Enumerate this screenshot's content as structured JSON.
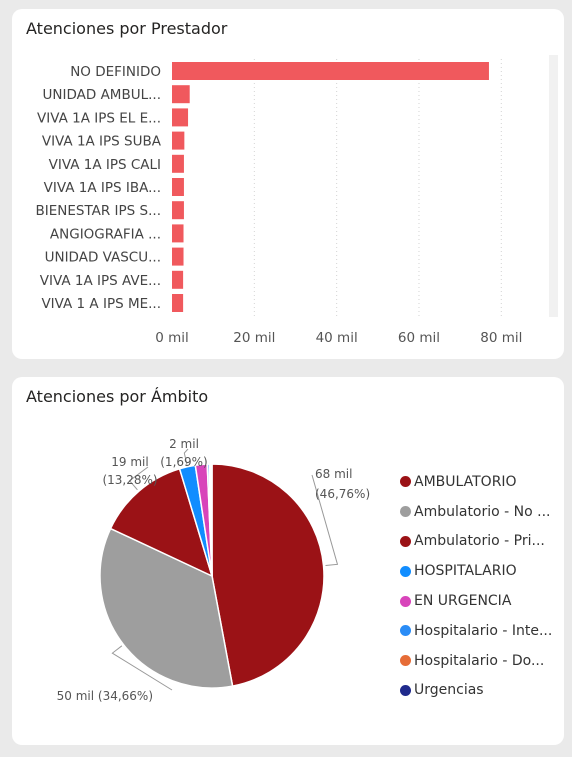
{
  "bar_card": {
    "title": "Atenciones por Prestador"
  },
  "pie_card": {
    "title": "Atenciones por Ámbito"
  },
  "chart_data": [
    {
      "type": "bar",
      "orientation": "horizontal",
      "title": "Atenciones por Prestador",
      "categories": [
        "NO DEFINIDO",
        "UNIDAD AMBUL...",
        "VIVA 1A IPS EL E...",
        "VIVA 1A IPS SUBA",
        "VIVA 1A IPS CALI",
        "VIVA 1A IPS IBA...",
        "BIENESTAR IPS S...",
        "ANGIOGRAFIA ...",
        "UNIDAD VASCU...",
        "VIVA 1A IPS AVE...",
        "VIVA 1 A IPS ME..."
      ],
      "values": [
        77000,
        4300,
        3900,
        3000,
        2900,
        2900,
        2900,
        2800,
        2800,
        2700,
        2700
      ],
      "xlim": [
        0,
        85000
      ],
      "xticks": [
        0,
        20000,
        40000,
        60000,
        80000
      ],
      "xtick_labels": [
        "0 mil",
        "20 mil",
        "40 mil",
        "60 mil",
        "80 mil"
      ],
      "grid": true,
      "color": "#F0595D"
    },
    {
      "type": "pie",
      "title": "Atenciones por Ámbito",
      "legend_position": "right",
      "labels": [
        "AMBULATORIO",
        "Ambulatorio - No ...",
        "Ambulatorio - Pri...",
        "HOSPITALARIO",
        "EN URGENCIA",
        "Hospitalario - Inte...",
        "Hospitalario - Do...",
        "Urgencias"
      ],
      "values": [
        67800,
        50300,
        19250,
        3300,
        2450,
        400,
        300,
        280
      ],
      "colors": [
        "#9B1216",
        "#9E9E9E",
        "#9B1216",
        "#118DFF",
        "#D844BA",
        "#2A8CF6",
        "#E66C37",
        "#1F2A8C"
      ],
      "data_labels": [
        {
          "value": "68 mil",
          "percent": "(46,76%)"
        },
        {
          "value": "50 mil (34,66%)",
          "percent": ""
        },
        {
          "value": "19 mil",
          "percent": "(13,28%)"
        },
        {
          "value": "2 mil",
          "percent": "(1,69%)"
        }
      ]
    }
  ]
}
